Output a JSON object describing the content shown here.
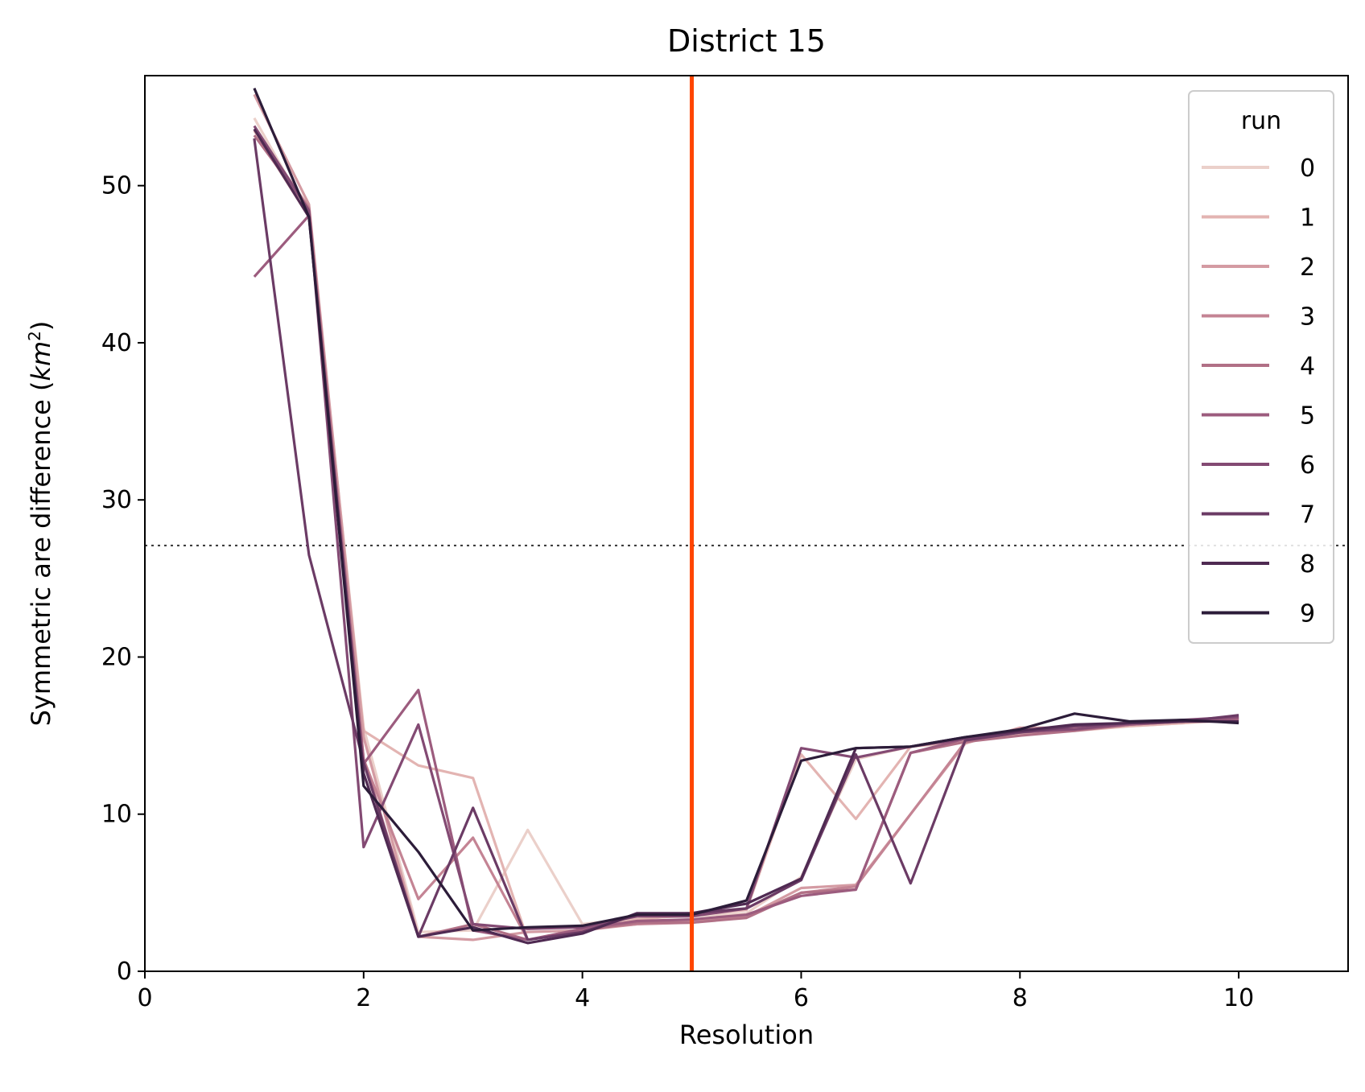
{
  "chart_data": {
    "type": "line",
    "title": "District 15",
    "xlabel": "Resolution",
    "ylabel_prefix": "Symmetric are difference (",
    "ylabel_unit_base": "km",
    "ylabel_unit_exp": "2",
    "ylabel_suffix": ")",
    "xlim": [
      0,
      11
    ],
    "ylim": [
      0,
      57
    ],
    "xticks": [
      0,
      2,
      4,
      6,
      8,
      10
    ],
    "yticks": [
      0,
      10,
      20,
      30,
      40,
      50
    ],
    "legend": {
      "title": "run",
      "position": "top-right"
    },
    "vline": {
      "x": 5,
      "color": "#ff4500"
    },
    "hline": {
      "y": 27.1,
      "color": "#333333",
      "style": "dotted"
    },
    "x": [
      1,
      1.5,
      2,
      2.5,
      3,
      3.5,
      4,
      4.5,
      5,
      5.5,
      6,
      6.5,
      7,
      7.5,
      8,
      8.5,
      9,
      9.5,
      10
    ],
    "series": [
      {
        "name": "0",
        "color": "#ebd0ca",
        "values": [
          54.3,
          48.1,
          15.5,
          2.5,
          2.6,
          9.0,
          3.0,
          3.4,
          3.5,
          3.7,
          6.0,
          13.5,
          14.3,
          14.6,
          15.2,
          15.5,
          15.6,
          15.8,
          16.0
        ]
      },
      {
        "name": "1",
        "color": "#e3b4b2",
        "values": [
          53.5,
          48.0,
          15.3,
          13.1,
          12.3,
          2.0,
          2.7,
          3.3,
          3.6,
          3.9,
          13.8,
          9.7,
          14.3,
          14.7,
          15.1,
          15.3,
          15.6,
          15.8,
          16.1
        ]
      },
      {
        "name": "2",
        "color": "#d49ba3",
        "values": [
          55.8,
          48.8,
          14.9,
          2.2,
          2.0,
          2.5,
          2.6,
          3.0,
          3.2,
          3.5,
          5.3,
          5.5,
          10.0,
          14.5,
          15.5,
          15.5,
          15.7,
          15.9,
          16.2
        ]
      },
      {
        "name": "3",
        "color": "#c48494",
        "values": [
          53.6,
          48.6,
          13.5,
          4.6,
          8.5,
          2.0,
          2.7,
          3.0,
          3.1,
          3.5,
          5.0,
          5.4,
          10.0,
          14.6,
          15.3,
          15.5,
          15.7,
          16.0,
          16.0
        ]
      },
      {
        "name": "4",
        "color": "#b17086",
        "values": [
          53.2,
          48.5,
          13.5,
          2.2,
          3.0,
          2.0,
          2.6,
          3.1,
          3.1,
          3.4,
          5.0,
          5.2,
          13.9,
          14.6,
          15.0,
          15.3,
          15.7,
          15.9,
          16.1
        ]
      },
      {
        "name": "5",
        "color": "#9c5c7e",
        "values": [
          44.2,
          48.1,
          13.2,
          17.9,
          2.6,
          2.0,
          2.7,
          3.2,
          3.3,
          3.6,
          4.8,
          5.2,
          13.9,
          14.8,
          15.2,
          15.4,
          15.7,
          15.9,
          16.1
        ]
      },
      {
        "name": "6",
        "color": "#834a73",
        "values": [
          53.8,
          48.4,
          7.9,
          15.7,
          3.0,
          2.7,
          2.8,
          3.5,
          3.5,
          4.0,
          14.2,
          13.6,
          14.3,
          14.8,
          15.3,
          15.4,
          15.8,
          16.0,
          16.2
        ]
      },
      {
        "name": "7",
        "color": "#6b3b65",
        "values": [
          53.0,
          26.5,
          13.3,
          2.2,
          10.4,
          2.0,
          2.5,
          3.6,
          3.7,
          4.0,
          5.8,
          13.8,
          5.6,
          14.7,
          15.2,
          15.6,
          15.8,
          15.9,
          16.3
        ]
      },
      {
        "name": "8",
        "color": "#4f2a52",
        "values": [
          53.6,
          48.0,
          12.6,
          2.2,
          2.8,
          1.8,
          2.4,
          3.7,
          3.7,
          4.3,
          5.9,
          14.2,
          14.3,
          14.9,
          15.3,
          15.7,
          15.8,
          15.9,
          15.9
        ]
      },
      {
        "name": "9",
        "color": "#2c1c39",
        "values": [
          56.2,
          48.0,
          11.8,
          7.6,
          2.6,
          2.8,
          2.9,
          3.6,
          3.6,
          4.5,
          13.4,
          14.2,
          14.3,
          14.9,
          15.4,
          16.4,
          15.9,
          16.0,
          15.8
        ]
      }
    ]
  }
}
